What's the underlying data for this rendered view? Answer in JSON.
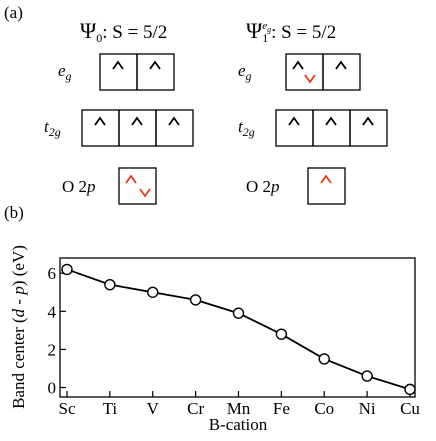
{
  "panel_a": {
    "label": "(a)",
    "state_0": {
      "symbol": "Ψ",
      "sub": "0",
      "rest": ": S = 5/2"
    },
    "state_1": {
      "symbol": "Ψ",
      "sub": "1",
      "sup": "e",
      "supsub": "g",
      "rest": ": S = 5/2"
    },
    "rows": [
      {
        "name": "e",
        "sub": "g"
      },
      {
        "name": "t",
        "sub": "2g"
      },
      {
        "name": "O 2",
        "italic": "p"
      }
    ]
  },
  "chart_data": {
    "type": "line",
    "panel_label": "(b)",
    "x_label": "B-cation",
    "y_label": {
      "pre": "Band center (",
      "a": "d",
      "mid": " - ",
      "b": "p",
      "post": ") (eV)"
    },
    "categories": [
      "Sc",
      "Ti",
      "V",
      "Cr",
      "Mn",
      "Fe",
      "Co",
      "Ni",
      "Cu"
    ],
    "values": [
      6.2,
      5.4,
      5.0,
      4.6,
      3.9,
      2.8,
      1.5,
      0.6,
      -0.1
    ],
    "color": "#000000",
    "ylim": [
      -0.5,
      6.8
    ],
    "yticks": [
      0,
      2,
      4,
      6
    ]
  }
}
